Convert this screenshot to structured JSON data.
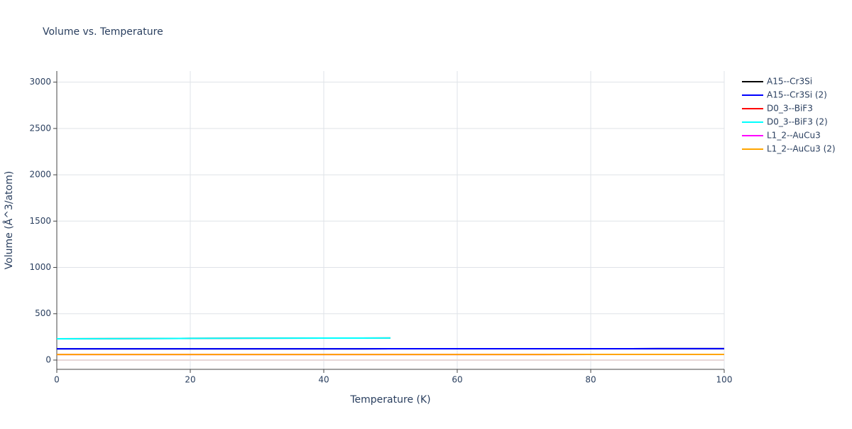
{
  "chart_data": {
    "type": "line",
    "title": "Volume vs. Temperature",
    "xlabel": "Temperature (K)",
    "ylabel": "Volume (Å^3/atom)",
    "xlim": [
      0,
      100
    ],
    "xticks": [
      0,
      20,
      40,
      60,
      80,
      100
    ],
    "ylim": [
      -100,
      3120
    ],
    "yticks": [
      0,
      500,
      1000,
      1500,
      2000,
      2500,
      3000
    ],
    "grid": true,
    "series": [
      {
        "name": "A15--Cr3Si",
        "color": "#000000",
        "x": [
          0,
          10,
          20,
          30,
          40,
          50,
          60,
          70,
          80,
          90,
          100
        ],
        "values": [
          121,
          121,
          121,
          121,
          121,
          122,
          122,
          122,
          122,
          123,
          123
        ]
      },
      {
        "name": "A15--Cr3Si (2)",
        "color": "#0000ff",
        "x": [
          0,
          10,
          20,
          30,
          40,
          50,
          60,
          70,
          80,
          90,
          100
        ],
        "values": [
          121,
          121,
          121,
          121,
          121,
          122,
          122,
          122,
          122,
          123,
          123
        ]
      },
      {
        "name": "D0_3--BiF3",
        "color": "#ff0000",
        "x": [
          0,
          10,
          20,
          30,
          40,
          50
        ],
        "values": [
          230,
          232,
          234,
          236,
          237,
          238
        ]
      },
      {
        "name": "D0_3--BiF3 (2)",
        "color": "#00ffff",
        "x": [
          0,
          10,
          20,
          30,
          40,
          50
        ],
        "values": [
          230,
          232,
          234,
          236,
          237,
          238
        ]
      },
      {
        "name": "L1_2--AuCu3",
        "color": "#ff00ff",
        "x": [
          0,
          10,
          20,
          30,
          40,
          50,
          60,
          70,
          80,
          90,
          100
        ],
        "values": [
          60,
          60,
          60,
          60,
          60,
          60,
          60,
          60,
          61,
          61,
          61
        ]
      },
      {
        "name": "L1_2--AuCu3 (2)",
        "color": "#ffa500",
        "x": [
          0,
          10,
          20,
          30,
          40,
          50,
          60,
          70,
          80,
          90,
          100
        ],
        "values": [
          60,
          60,
          60,
          60,
          60,
          60,
          60,
          60,
          61,
          61,
          61
        ]
      }
    ]
  }
}
